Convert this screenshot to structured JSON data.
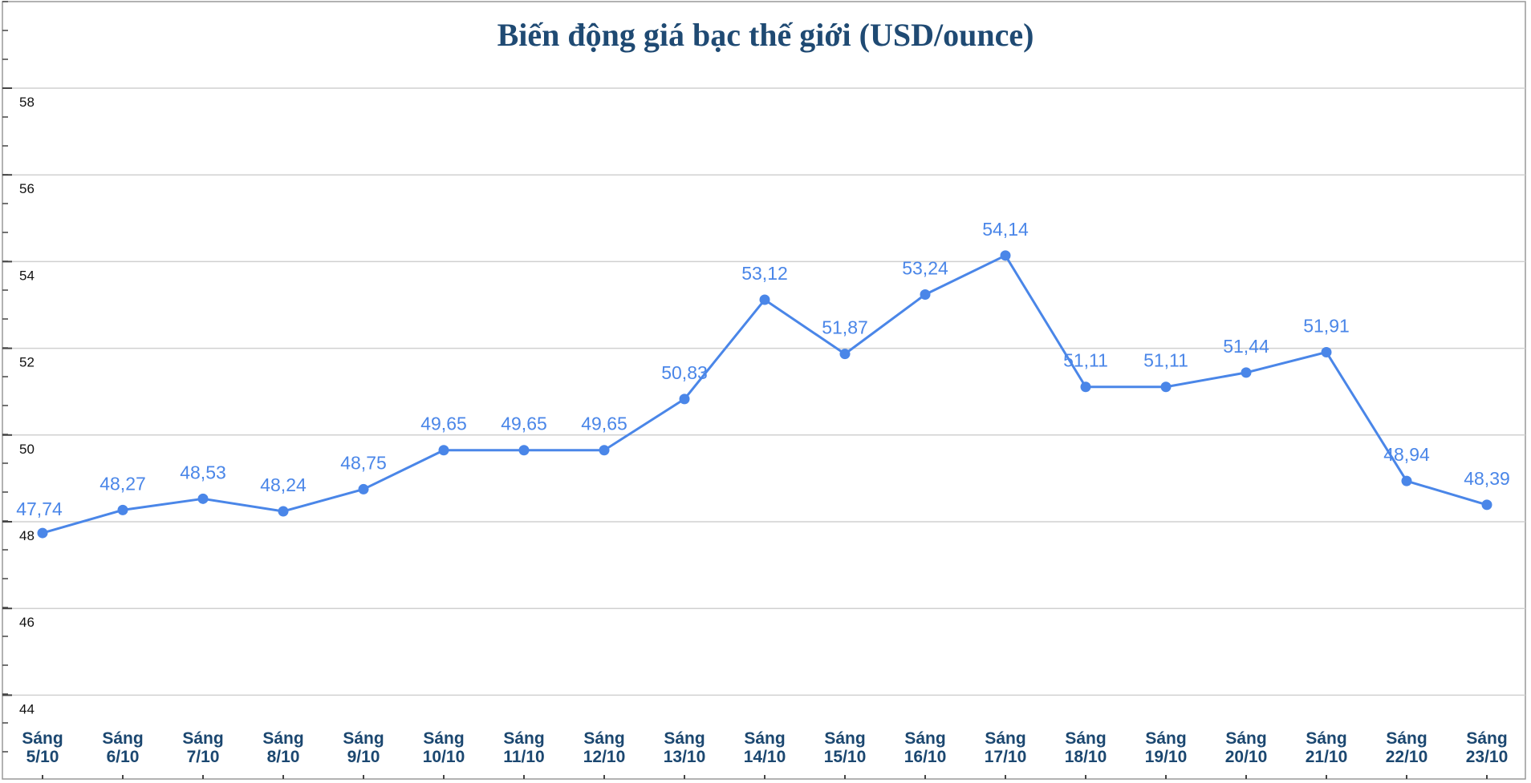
{
  "chart_data": {
    "type": "line",
    "title": "Biến động giá bạc thế giới (USD/ounce)",
    "xlabel": "",
    "ylabel": "",
    "ylim": [
      44,
      58
    ],
    "yticks": [
      "44",
      "46",
      "48",
      "50",
      "52",
      "54",
      "56",
      "58"
    ],
    "grid": true,
    "legend": "none",
    "categories": [
      [
        "Sáng",
        "5/10"
      ],
      [
        "Sáng",
        "6/10"
      ],
      [
        "Sáng",
        "7/10"
      ],
      [
        "Sáng",
        "8/10"
      ],
      [
        "Sáng",
        "9/10"
      ],
      [
        "Sáng",
        "10/10"
      ],
      [
        "Sáng",
        "11/10"
      ],
      [
        "Sáng",
        "12/10"
      ],
      [
        "Sáng",
        "13/10"
      ],
      [
        "Sáng",
        "14/10"
      ],
      [
        "Sáng",
        "15/10"
      ],
      [
        "Sáng",
        "16/10"
      ],
      [
        "Sáng",
        "17/10"
      ],
      [
        "Sáng",
        "18/10"
      ],
      [
        "Sáng",
        "19/10"
      ],
      [
        "Sáng",
        "20/10"
      ],
      [
        "Sáng",
        "21/10"
      ],
      [
        "Sáng",
        "22/10"
      ],
      [
        "Sáng",
        "23/10"
      ]
    ],
    "values": [
      47.74,
      48.27,
      48.53,
      48.24,
      48.75,
      49.65,
      49.65,
      49.65,
      50.83,
      53.12,
      51.87,
      53.24,
      54.14,
      51.11,
      51.11,
      51.44,
      51.91,
      48.94,
      48.39
    ],
    "labels": [
      "47,74",
      "48,27",
      "48,53",
      "48,24",
      "48,75",
      "49,65",
      "49,65",
      "49,65",
      "50,83",
      "53,12",
      "51,87",
      "53,24",
      "54,14",
      "51,11",
      "51,11",
      "51,44",
      "51,91",
      "48,94",
      "48,39"
    ],
    "colors": {
      "line": "#4a86e8",
      "title": "#1f4a73",
      "xlabels": "#1b4770"
    }
  }
}
